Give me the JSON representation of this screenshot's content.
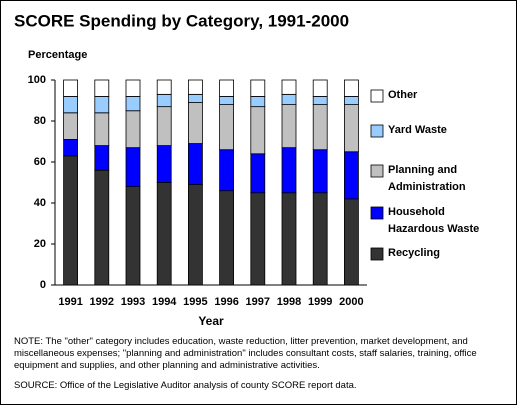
{
  "chart_data": {
    "type": "stacked-bar",
    "title": "SCORE Spending by Category, 1991-2000",
    "y_label": "Percentage",
    "x_label": "Year",
    "categories": [
      "1991",
      "1992",
      "1993",
      "1994",
      "1995",
      "1996",
      "1997",
      "1998",
      "1999",
      "2000"
    ],
    "series": [
      {
        "name": "Recycling",
        "color": "#333333",
        "values": [
          63,
          56,
          48,
          50,
          49,
          46,
          45,
          45,
          45,
          42
        ]
      },
      {
        "name": "Household Hazardous Waste",
        "color": "#0000ff",
        "values": [
          8,
          12,
          19,
          18,
          20,
          20,
          19,
          22,
          21,
          23
        ]
      },
      {
        "name": "Planning and Administration",
        "color": "#c0c0c0",
        "values": [
          13,
          16,
          18,
          19,
          20,
          22,
          23,
          21,
          22,
          23
        ]
      },
      {
        "name": "Yard Waste",
        "color": "#99ccff",
        "values": [
          8,
          8,
          7,
          6,
          4,
          4,
          5,
          5,
          4,
          4
        ]
      },
      {
        "name": "Other",
        "color": "#ffffff",
        "values": [
          8,
          8,
          8,
          7,
          7,
          8,
          8,
          7,
          8,
          8
        ]
      }
    ],
    "ylim": [
      0,
      100
    ],
    "yticks": [
      0,
      20,
      40,
      60,
      80,
      100
    ],
    "note": "NOTE:  The \"other\" category includes education, waste reduction, litter prevention, market development, and miscellaneous expenses; \"planning and administration\" includes consultant costs, staff salaries, training, office equipment and supplies, and other planning and administrative activities.",
    "source": "SOURCE:  Office of the Legislative Auditor analysis of county SCORE report data."
  }
}
